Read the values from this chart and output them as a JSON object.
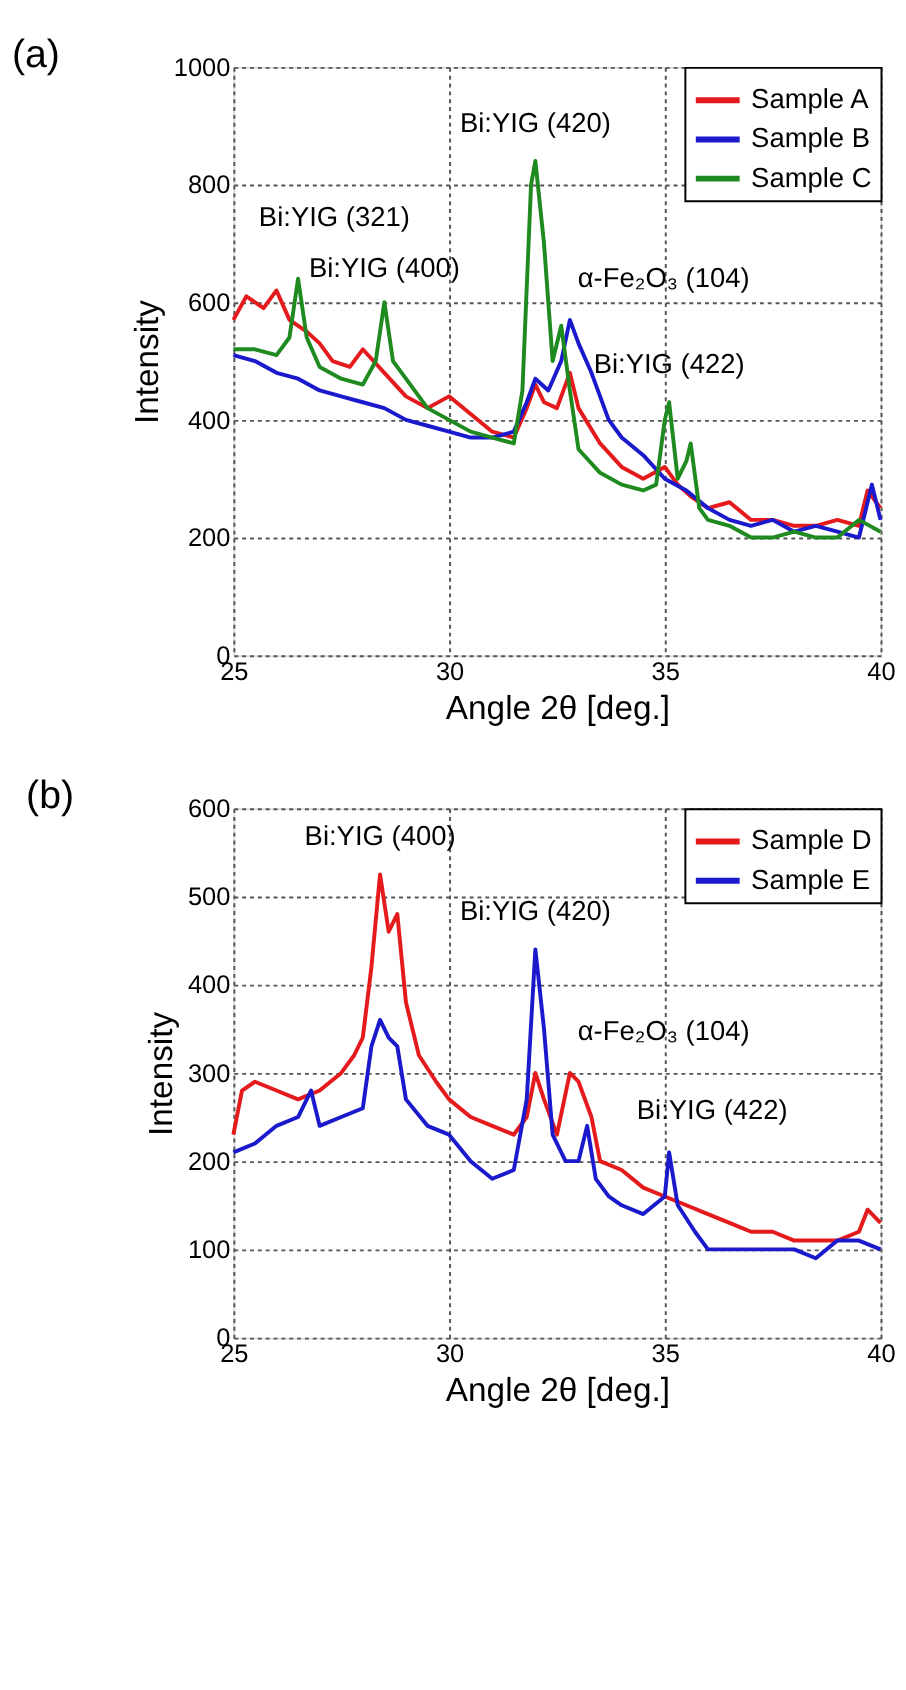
{
  "chart_data": [
    {
      "type": "line",
      "title": "(a)",
      "xlabel": "Angle 2θ [deg.]",
      "ylabel": "Intensity",
      "xlim": [
        25,
        40
      ],
      "xticks": [
        25,
        30,
        35,
        40
      ],
      "ylim": [
        0,
        1000
      ],
      "yticks": [
        0,
        200,
        400,
        600,
        800,
        {
          "value": 1000,
          "label": "1000"
        }
      ],
      "grid": true,
      "legend": "top right",
      "line_style": "solid",
      "marker": "none",
      "series": [
        {
          "name": "Sample A",
          "color": "#e41a1c",
          "x": [
            25,
            25.3,
            25.7,
            26,
            26.3,
            26.7,
            27,
            27.3,
            27.7,
            28,
            28.5,
            29,
            29.5,
            30,
            30.5,
            31,
            31.5,
            31.8,
            32,
            32.2,
            32.5,
            32.8,
            33,
            33.5,
            34,
            34.5,
            35,
            35.3,
            35.6,
            36,
            36.5,
            37,
            37.5,
            38,
            38.5,
            39,
            39.5,
            39.7,
            40
          ],
          "values": [
            570,
            610,
            590,
            620,
            570,
            550,
            530,
            500,
            490,
            520,
            480,
            440,
            420,
            440,
            410,
            380,
            370,
            420,
            460,
            430,
            420,
            480,
            420,
            360,
            320,
            300,
            320,
            290,
            270,
            250,
            260,
            230,
            230,
            220,
            220,
            230,
            220,
            280,
            250
          ]
        },
        {
          "name": "Sample B",
          "color": "#1a1acc",
          "x": [
            25,
            25.5,
            26,
            26.5,
            27,
            27.5,
            28,
            28.5,
            29,
            29.5,
            30,
            30.5,
            31,
            31.5,
            31.8,
            32,
            32.3,
            32.6,
            32.8,
            33,
            33.3,
            33.7,
            34,
            34.5,
            35,
            35.5,
            36,
            36.5,
            37,
            37.5,
            38,
            38.5,
            39,
            39.5,
            39.8,
            40
          ],
          "values": [
            510,
            500,
            480,
            470,
            450,
            440,
            430,
            420,
            400,
            390,
            380,
            370,
            370,
            380,
            430,
            470,
            450,
            500,
            570,
            530,
            480,
            400,
            370,
            340,
            300,
            280,
            250,
            230,
            220,
            230,
            210,
            220,
            210,
            200,
            290,
            230
          ]
        },
        {
          "name": "Sample C",
          "color": "#1f8a1f",
          "x": [
            25,
            25.5,
            26,
            26.3,
            26.5,
            26.7,
            27,
            27.5,
            28,
            28.3,
            28.5,
            28.7,
            29,
            29.5,
            30,
            30.5,
            31,
            31.5,
            31.7,
            31.9,
            32,
            32.2,
            32.4,
            32.6,
            32.8,
            33,
            33.5,
            34,
            34.5,
            34.8,
            35,
            35.1,
            35.3,
            35.5,
            35.6,
            35.8,
            36,
            36.5,
            37,
            37.5,
            38,
            38.5,
            39,
            39.5,
            40
          ],
          "values": [
            520,
            520,
            510,
            540,
            640,
            540,
            490,
            470,
            460,
            500,
            600,
            500,
            470,
            420,
            400,
            380,
            370,
            360,
            450,
            800,
            840,
            700,
            500,
            560,
            450,
            350,
            310,
            290,
            280,
            290,
            400,
            430,
            300,
            330,
            360,
            250,
            230,
            220,
            200,
            200,
            210,
            200,
            200,
            230,
            210
          ]
        }
      ],
      "annotations": [
        {
          "text": "Bi:YIG (420)",
          "x": 32,
          "y": 840
        },
        {
          "text": "Bi:YIG (321)",
          "x": 26.5,
          "y": 640
        },
        {
          "text": "Bi:YIG (400)",
          "x": 28.5,
          "y": 600
        },
        {
          "text": "α-Fe₂O₃ (104)",
          "x": 32.8,
          "y": 570
        },
        {
          "text": "Bi:YIG (422)",
          "x": 35.1,
          "y": 430
        }
      ]
    },
    {
      "type": "line",
      "title": "(b)",
      "xlabel": "Angle 2θ [deg.]",
      "ylabel": "Intensity",
      "xlim": [
        25,
        40
      ],
      "xticks": [
        25,
        30,
        35,
        40
      ],
      "ylim": [
        0,
        600
      ],
      "yticks": [
        0,
        100,
        200,
        300,
        400,
        500,
        600
      ],
      "grid": true,
      "legend": "top right",
      "line_style": "solid",
      "marker": "none",
      "series": [
        {
          "name": "Sample D",
          "color": "#e41a1c",
          "x": [
            25,
            25.2,
            25.5,
            26,
            26.5,
            27,
            27.5,
            27.8,
            28,
            28.2,
            28.4,
            28.6,
            28.8,
            29,
            29.3,
            29.7,
            30,
            30.5,
            31,
            31.5,
            31.8,
            32,
            32.2,
            32.5,
            32.8,
            33,
            33.3,
            33.5,
            34,
            34.5,
            35,
            35.5,
            36,
            36.5,
            37,
            37.5,
            38,
            38.5,
            39,
            39.5,
            39.7,
            40
          ],
          "values": [
            230,
            280,
            290,
            280,
            270,
            280,
            300,
            320,
            340,
            420,
            525,
            460,
            480,
            380,
            320,
            290,
            270,
            250,
            240,
            230,
            250,
            300,
            270,
            230,
            300,
            290,
            250,
            200,
            190,
            170,
            160,
            150,
            140,
            130,
            120,
            120,
            110,
            110,
            110,
            120,
            145,
            130
          ]
        },
        {
          "name": "Sample E",
          "color": "#1a1acc",
          "x": [
            25,
            25.5,
            26,
            26.5,
            26.8,
            27,
            27.5,
            28,
            28.2,
            28.4,
            28.6,
            28.8,
            29,
            29.5,
            30,
            30.5,
            31,
            31.5,
            31.8,
            32,
            32.2,
            32.4,
            32.7,
            33,
            33.2,
            33.4,
            33.7,
            34,
            34.5,
            35,
            35.1,
            35.3,
            35.7,
            36,
            36.5,
            37,
            37.5,
            38,
            38.5,
            39,
            39.5,
            40
          ],
          "values": [
            210,
            220,
            240,
            250,
            280,
            240,
            250,
            260,
            330,
            360,
            340,
            330,
            270,
            240,
            230,
            200,
            180,
            190,
            270,
            440,
            350,
            230,
            200,
            200,
            240,
            180,
            160,
            150,
            140,
            160,
            210,
            150,
            120,
            100,
            100,
            100,
            100,
            100,
            90,
            110,
            110,
            100
          ]
        }
      ],
      "annotations": [
        {
          "text": "Bi:YIG (400)",
          "x": 28.4,
          "y": 525
        },
        {
          "text": "Bi:YIG (420)",
          "x": 32,
          "y": 440
        },
        {
          "text": "α-Fe₂O₃ (104)",
          "x": 32.8,
          "y": 300
        },
        {
          "text": "Bi:YIG (422)",
          "x": 35.1,
          "y": 210
        }
      ]
    }
  ]
}
